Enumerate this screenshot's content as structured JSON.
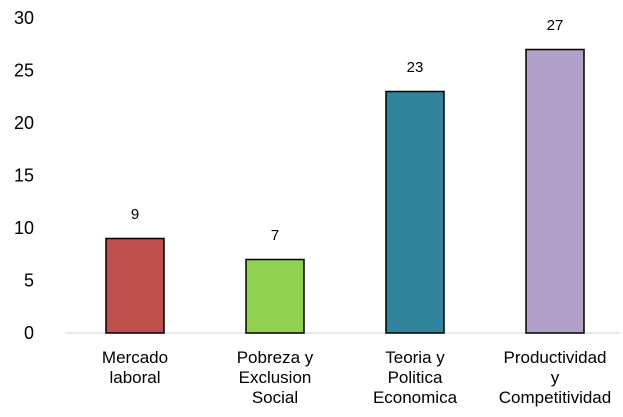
{
  "chart_data": {
    "type": "bar",
    "categories": [
      [
        "Mercado",
        "laboral"
      ],
      [
        "Pobreza y",
        "Exclusion",
        "Social"
      ],
      [
        "Teoria y",
        "Politica",
        "Economica"
      ],
      [
        "Productividad",
        "y",
        "Competitividad"
      ]
    ],
    "values": [
      9,
      7,
      23,
      27
    ],
    "colors": [
      "#c0504d",
      "#92d050",
      "#31849b",
      "#b1a0c7"
    ],
    "data_labels": [
      "9",
      "7",
      "23",
      "27"
    ],
    "yticks": [
      0,
      5,
      10,
      15,
      20,
      25,
      30
    ],
    "ylim": [
      0,
      30
    ],
    "title": "",
    "xlabel": "",
    "ylabel": "",
    "grid": false,
    "legend": "none"
  }
}
